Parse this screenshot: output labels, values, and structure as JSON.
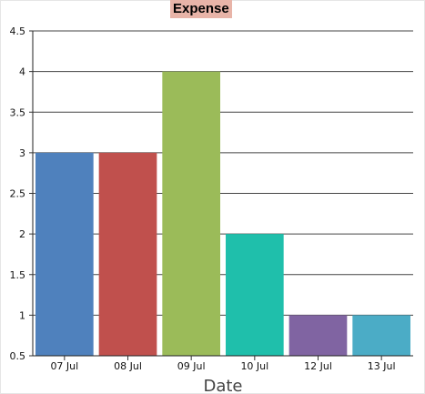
{
  "chart_data": {
    "type": "bar",
    "title": "Expense",
    "xlabel": "Date",
    "ylabel": "",
    "categories": [
      "07 Jul",
      "08 Jul",
      "09 Jul",
      "10 Jul",
      "12 Jul",
      "13 Jul"
    ],
    "values": [
      3,
      3,
      4,
      2,
      1,
      1
    ],
    "colors": [
      "#4f81bd",
      "#c0504d",
      "#9bbb59",
      "#1fbfab",
      "#8064a2",
      "#4bacc6"
    ],
    "ylim": [
      0.5,
      4.5
    ],
    "yticks": [
      "0.5",
      "1",
      "1.5",
      "2",
      "2.5",
      "3",
      "3.5",
      "4",
      "4.5"
    ],
    "grid": true,
    "legend": "none"
  }
}
